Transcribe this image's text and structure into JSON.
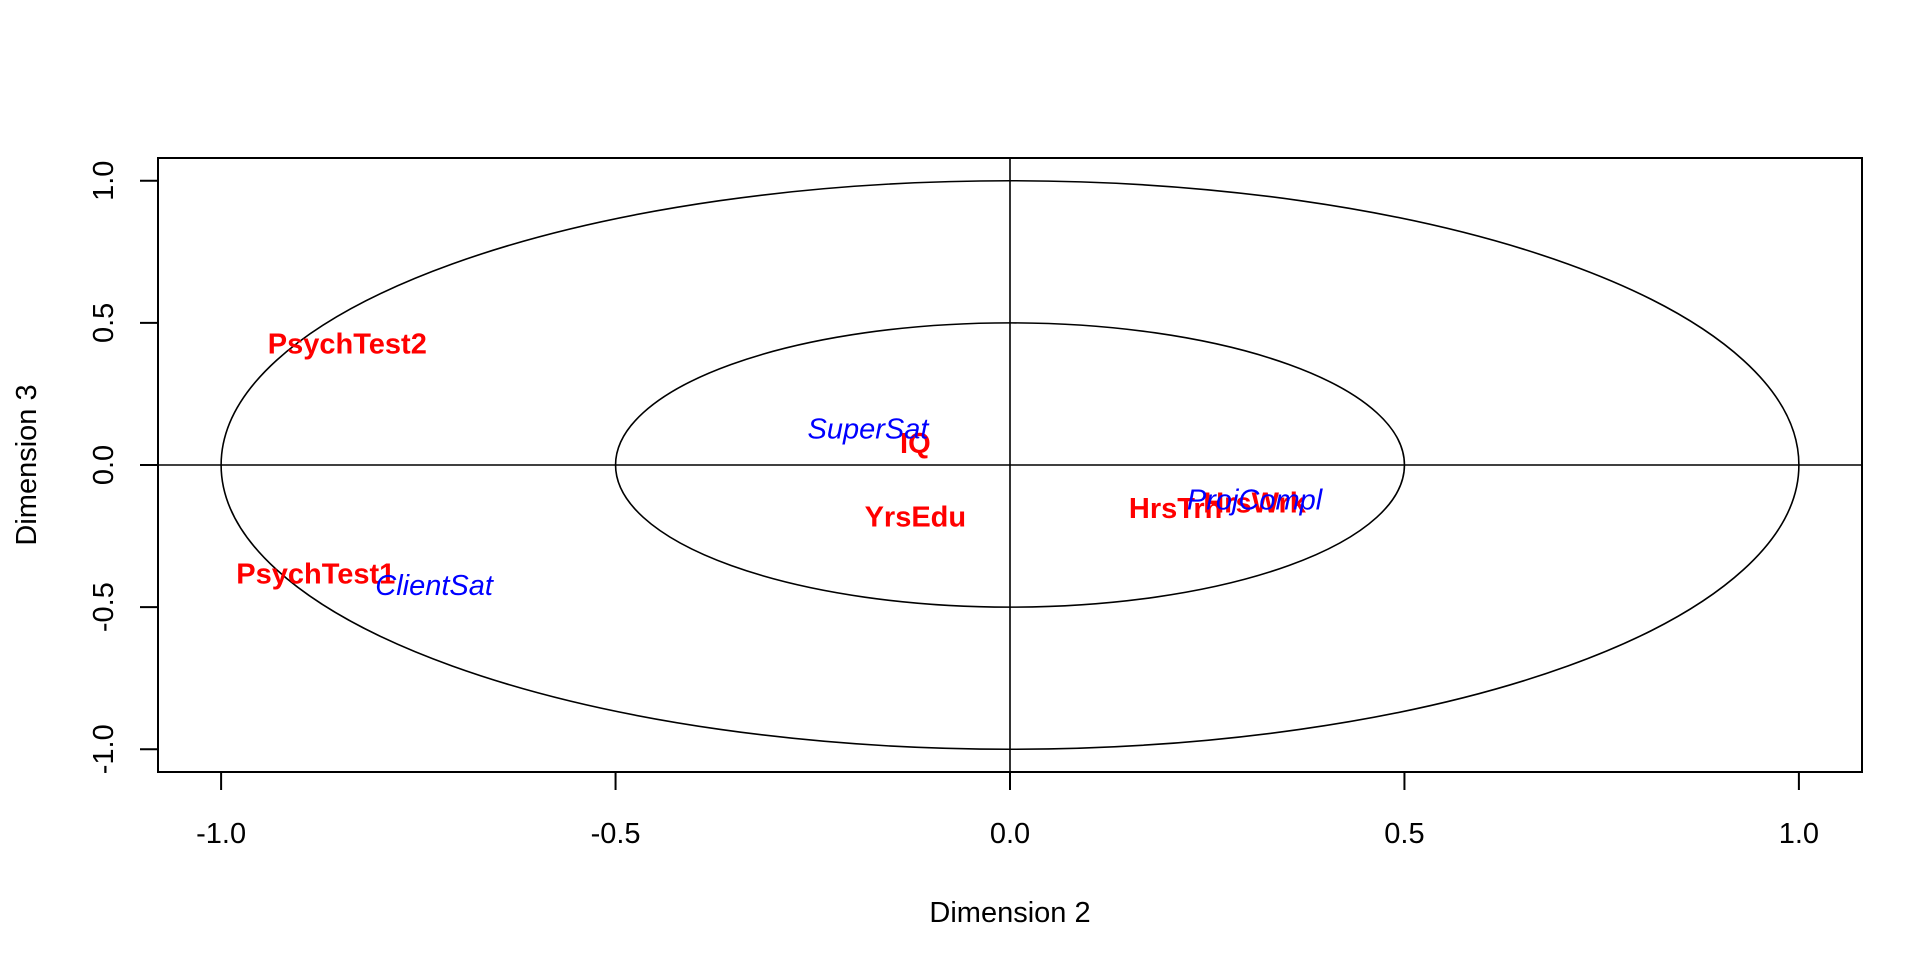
{
  "chart_data": {
    "type": "scatter",
    "title": "",
    "xlabel": "Dimension  2",
    "ylabel": "Dimension  3",
    "xlim": [
      -1.08,
      1.08
    ],
    "ylim": [
      -1.08,
      1.08
    ],
    "x_ticks": [
      -1.0,
      -0.5,
      0.0,
      0.5,
      1.0
    ],
    "x_tick_labels": [
      "-1.0",
      "-0.5",
      "0.0",
      "0.5",
      "1.0"
    ],
    "y_ticks": [
      -1.0,
      -0.5,
      0.0,
      0.5,
      1.0
    ],
    "y_tick_labels": [
      "-1.0",
      "-0.5",
      "0.0",
      "0.5",
      "1.0"
    ],
    "grid": false,
    "reference_lines": {
      "x": 0,
      "y": 0
    },
    "circles": [
      1.0,
      0.5
    ],
    "series": [
      {
        "color": "#ff0000",
        "style": "bold",
        "points": [
          {
            "label": "PsychTest2",
            "x": -0.84,
            "y": 0.42
          },
          {
            "label": "PsychTest1",
            "x": -0.88,
            "y": -0.39
          },
          {
            "label": "IQ",
            "x": -0.12,
            "y": 0.07
          },
          {
            "label": "YrsEdu",
            "x": -0.12,
            "y": -0.19
          },
          {
            "label": "HrsTrn",
            "x": 0.21,
            "y": -0.16
          },
          {
            "label": "HrsWrk",
            "x": 0.31,
            "y": -0.14
          }
        ]
      },
      {
        "color": "#0000ff",
        "style": "italic",
        "points": [
          {
            "label": "SuperSat",
            "x": -0.18,
            "y": 0.12
          },
          {
            "label": "ClientSat",
            "x": -0.73,
            "y": -0.43
          },
          {
            "label": "ProjCompl",
            "x": 0.31,
            "y": -0.13
          }
        ]
      }
    ]
  }
}
